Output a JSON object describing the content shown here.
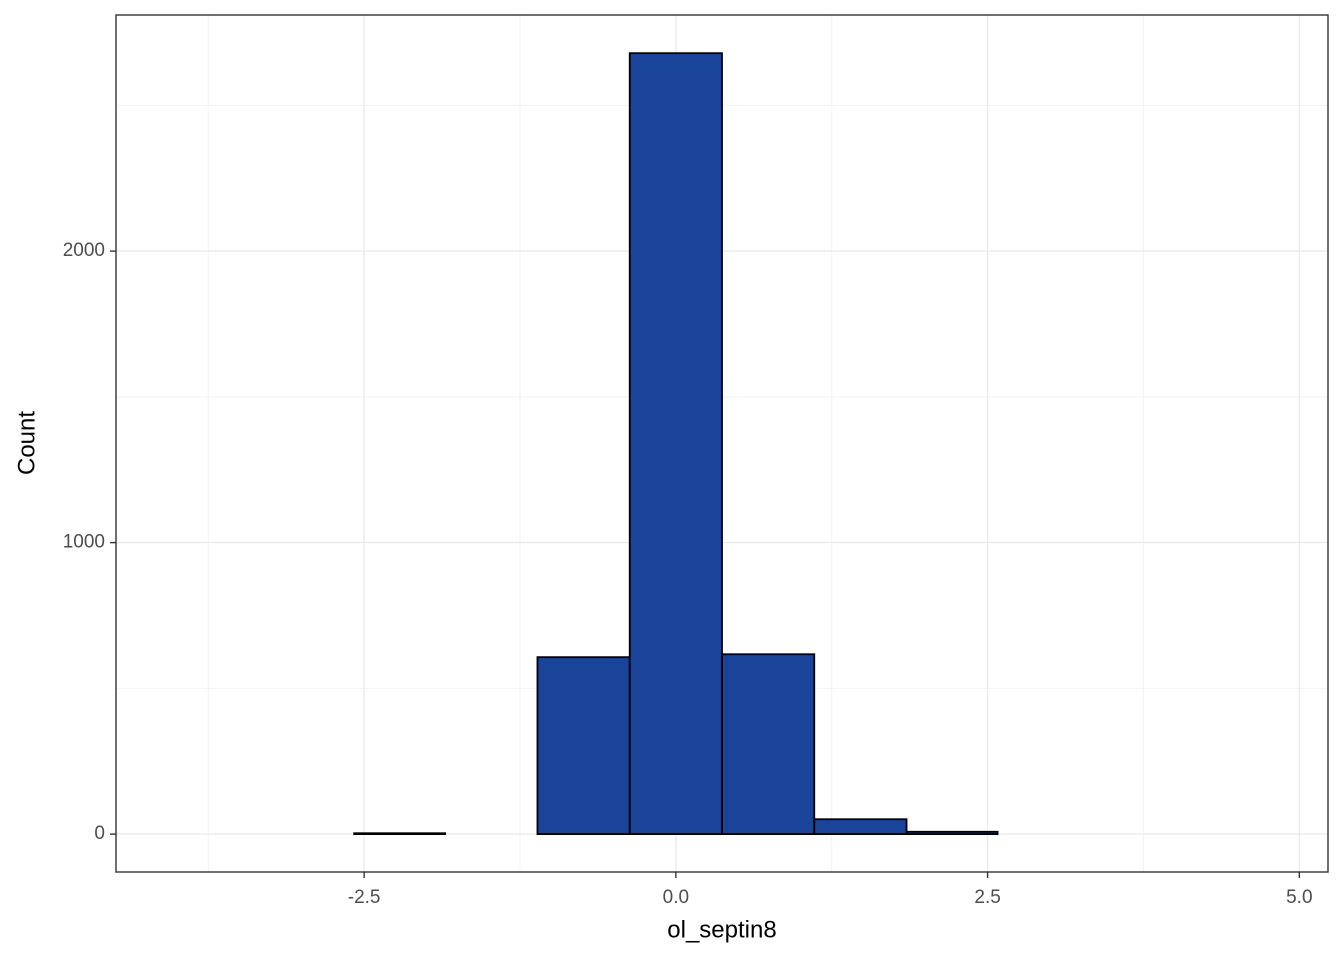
{
  "chart_data": {
    "type": "histogram",
    "x_label": "ol_septin8",
    "y_label": "Count",
    "bins": [
      -4.06,
      -3.32,
      -2.58,
      -1.85,
      -1.11,
      -0.37,
      0.37,
      1.11,
      1.85,
      2.58,
      3.32,
      4.06,
      4.8
    ],
    "values": [
      0,
      0,
      3,
      0,
      607,
      2679,
      617,
      51,
      8,
      0,
      0,
      0
    ],
    "color": "#1a4499",
    "edge_color": "#000000",
    "xlim": [
      -4.49,
      5.23
    ],
    "ylim": [
      -130,
      2810
    ],
    "xticks": [
      -2.5,
      {
        "value": 0,
        "label": "0.0"
      },
      2.5,
      {
        "value": 5,
        "label": "5.0"
      }
    ],
    "yticks": [
      0,
      1000,
      2000
    ],
    "x_minor_grid": [
      -3.75,
      -1.25,
      1.25,
      3.75
    ],
    "y_minor_grid": [
      500,
      1500,
      2500
    ],
    "grid": true
  }
}
